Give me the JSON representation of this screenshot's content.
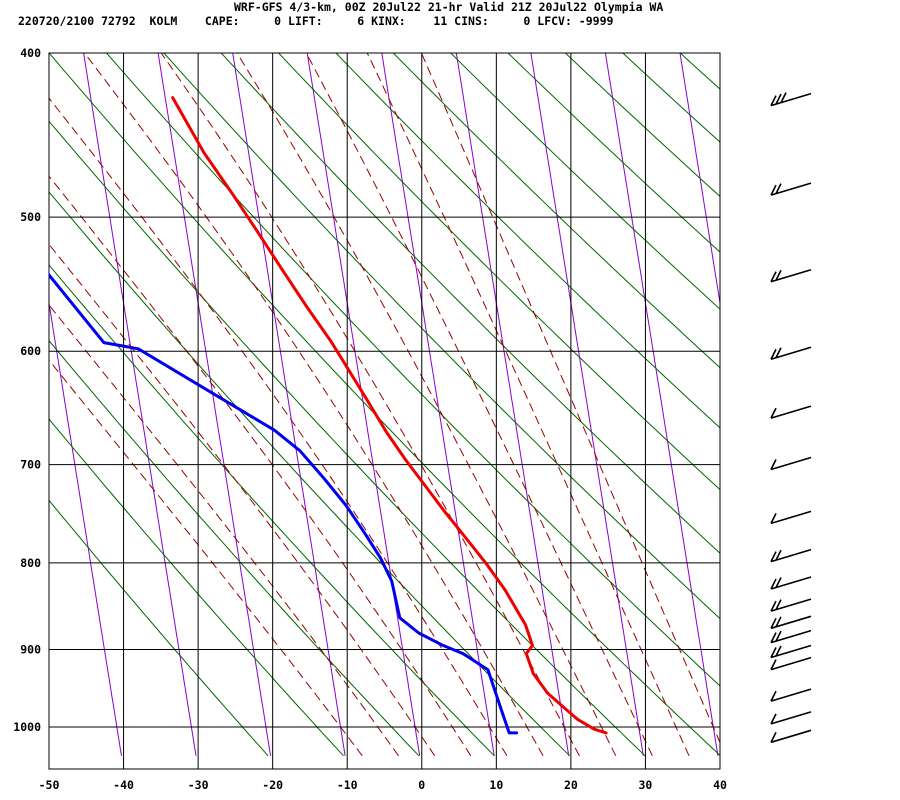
{
  "header": {
    "line1": "WRF-GFS 4/3-km, 00Z 20Jul22 21-hr Valid 21Z 20Jul22 Olympia WA",
    "line2": "220720/2100 72792  KOLM    CAPE:     0 LIFT:     6 KINX:    11 CINS:     0 LFCV: -9999"
  },
  "chart_data": {
    "type": "line",
    "subtype": "skew-T log-P sounding",
    "title": "WRF-GFS 4/3-km, 00Z 20Jul22 21-hr Valid 21Z 20Jul22 Olympia WA",
    "xlim": [
      -50,
      40
    ],
    "ylim": [
      1040,
      400
    ],
    "y_scale": "log",
    "grid": true,
    "x_ticks": [
      "-50",
      "-40",
      "-30",
      "-20",
      "-10",
      "0",
      "10",
      "20",
      "30",
      "40"
    ],
    "y_ticks": [
      "400",
      "500",
      "600",
      "700",
      "800",
      "900",
      "1000"
    ],
    "colors": {
      "temperature": "#ee0000",
      "dewpoint": "#0000ee",
      "isotherm": "#8800cc",
      "dry_adiabat": "#006600",
      "moist_adiabat": "#990000",
      "grid": "#000000"
    },
    "series": [
      {
        "id": "temperature",
        "points": [
          [
            25.5,
            1008
          ],
          [
            24.0,
            1003
          ],
          [
            22.0,
            990
          ],
          [
            20.5,
            975
          ],
          [
            18.5,
            955
          ],
          [
            17.0,
            930
          ],
          [
            16.5,
            905
          ],
          [
            17.5,
            895
          ],
          [
            17.0,
            870
          ],
          [
            15.0,
            830
          ],
          [
            13.0,
            800
          ],
          [
            11.0,
            775
          ],
          [
            8.5,
            745
          ],
          [
            6.5,
            720
          ],
          [
            4.5,
            696
          ],
          [
            2.5,
            670
          ],
          [
            0.5,
            640
          ],
          [
            -1.5,
            612
          ],
          [
            -3.0,
            592
          ],
          [
            -5.5,
            565
          ],
          [
            -8.0,
            537
          ],
          [
            -10.5,
            510
          ],
          [
            -13.0,
            485
          ],
          [
            -16.0,
            458
          ],
          [
            -19.0,
            425
          ]
        ]
      },
      {
        "id": "dewpoint",
        "points": [
          [
            13.5,
            1008
          ],
          [
            12.5,
            1008
          ],
          [
            12.0,
            980
          ],
          [
            11.0,
            925
          ],
          [
            8.0,
            905
          ],
          [
            5.5,
            895
          ],
          [
            2.5,
            880
          ],
          [
            0.3,
            862
          ],
          [
            0.0,
            820
          ],
          [
            -1.0,
            795
          ],
          [
            -2.5,
            770
          ],
          [
            -4.5,
            740
          ],
          [
            -7.0,
            712
          ],
          [
            -9.5,
            687
          ],
          [
            -12.5,
            668
          ],
          [
            -17.5,
            646
          ],
          [
            -29.0,
            598
          ],
          [
            -33.5,
            593
          ],
          [
            -39.5,
            540
          ],
          [
            -39.0,
            515
          ],
          [
            -37.5,
            470
          ],
          [
            -36.0,
            423
          ]
        ]
      }
    ],
    "wind_barbs": [
      {
        "p": 425,
        "barbs": 3
      },
      {
        "p": 480,
        "barbs": 2
      },
      {
        "p": 540,
        "barbs": 2
      },
      {
        "p": 600,
        "barbs": 2
      },
      {
        "p": 650,
        "barbs": 1
      },
      {
        "p": 697,
        "barbs": 1
      },
      {
        "p": 750,
        "barbs": 1
      },
      {
        "p": 790,
        "barbs": 2
      },
      {
        "p": 820,
        "barbs": 2
      },
      {
        "p": 845,
        "barbs": 2
      },
      {
        "p": 865,
        "barbs": 2
      },
      {
        "p": 882,
        "barbs": 2
      },
      {
        "p": 900,
        "barbs": 2
      },
      {
        "p": 915,
        "barbs": 1
      },
      {
        "p": 955,
        "barbs": 1
      },
      {
        "p": 985,
        "barbs": 1
      },
      {
        "p": 1010,
        "barbs": 1
      }
    ]
  }
}
